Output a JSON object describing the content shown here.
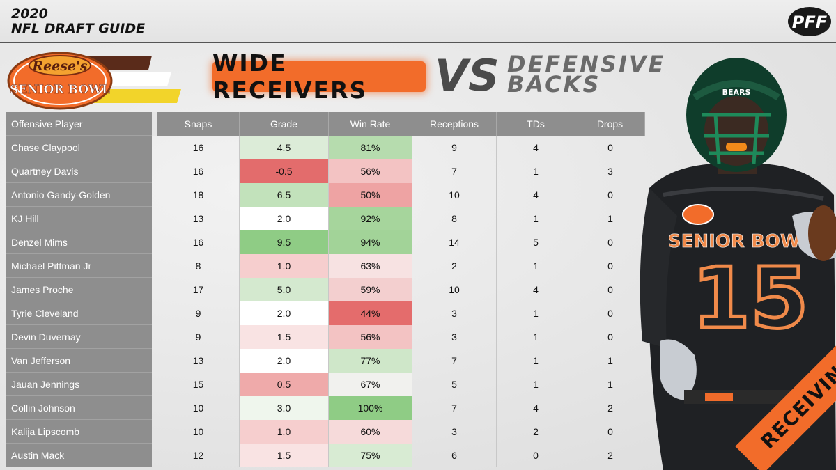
{
  "header": {
    "year": "2020",
    "guide_name": "NFL DRAFT GUIDE",
    "brand": "PFF"
  },
  "logo": {
    "top_text": "Reese's",
    "bottom_text": "SENIOR BOWL"
  },
  "title": {
    "left": "WIDE RECEIVERS",
    "vs": "VS",
    "right_line1": "DEFENSIVE",
    "right_line2": "BACKS"
  },
  "table": {
    "columns": [
      "Offensive Player",
      "Snaps",
      "Grade",
      "Win Rate",
      "Receptions",
      "TDs",
      "Drops"
    ],
    "rows": [
      {
        "player": "Chase Claypool",
        "snaps": "16",
        "grade": "4.5",
        "win_rate": "81%",
        "receptions": "9",
        "tds": "4",
        "drops": "0",
        "grade_color": "#dcecd8",
        "win_color": "#b6dcae"
      },
      {
        "player": "Quartney Davis",
        "snaps": "16",
        "grade": "-0.5",
        "win_rate": "56%",
        "receptions": "7",
        "tds": "1",
        "drops": "3",
        "grade_color": "#e36c6c",
        "win_color": "#f3c3c3"
      },
      {
        "player": "Antonio Gandy-Golden",
        "snaps": "18",
        "grade": "6.5",
        "win_rate": "50%",
        "receptions": "10",
        "tds": "4",
        "drops": "0",
        "grade_color": "#c2e2bb",
        "win_color": "#eea3a3"
      },
      {
        "player": "KJ Hill",
        "snaps": "13",
        "grade": "2.0",
        "win_rate": "92%",
        "receptions": "8",
        "tds": "1",
        "drops": "1",
        "grade_color": "#ffffff",
        "win_color": "#a6d59c"
      },
      {
        "player": "Denzel Mims",
        "snaps": "16",
        "grade": "9.5",
        "win_rate": "94%",
        "receptions": "14",
        "tds": "5",
        "drops": "0",
        "grade_color": "#8fcc85",
        "win_color": "#a2d398"
      },
      {
        "player": "Michael Pittman Jr",
        "snaps": "8",
        "grade": "1.0",
        "win_rate": "63%",
        "receptions": "2",
        "tds": "1",
        "drops": "0",
        "grade_color": "#f6cece",
        "win_color": "#f7e2e2"
      },
      {
        "player": "James Proche",
        "snaps": "17",
        "grade": "5.0",
        "win_rate": "59%",
        "receptions": "10",
        "tds": "4",
        "drops": "0",
        "grade_color": "#d4e9cf",
        "win_color": "#f3cfcf"
      },
      {
        "player": "Tyrie Cleveland",
        "snaps": "9",
        "grade": "2.0",
        "win_rate": "44%",
        "receptions": "3",
        "tds": "1",
        "drops": "0",
        "grade_color": "#ffffff",
        "win_color": "#e46c6c"
      },
      {
        "player": "Devin Duvernay",
        "snaps": "9",
        "grade": "1.5",
        "win_rate": "56%",
        "receptions": "3",
        "tds": "1",
        "drops": "0",
        "grade_color": "#f9e3e3",
        "win_color": "#f3c3c3"
      },
      {
        "player": "Van Jefferson",
        "snaps": "13",
        "grade": "2.0",
        "win_rate": "77%",
        "receptions": "7",
        "tds": "1",
        "drops": "1",
        "grade_color": "#ffffff",
        "win_color": "#cfe7c9"
      },
      {
        "player": "Jauan Jennings",
        "snaps": "15",
        "grade": "0.5",
        "win_rate": "67%",
        "receptions": "5",
        "tds": "1",
        "drops": "1",
        "grade_color": "#efaaaa",
        "win_color": "#f1f1ee"
      },
      {
        "player": "Collin Johnson",
        "snaps": "10",
        "grade": "3.0",
        "win_rate": "100%",
        "receptions": "7",
        "tds": "4",
        "drops": "2",
        "grade_color": "#eff6ed",
        "win_color": "#8fcc85"
      },
      {
        "player": "Kalija Lipscomb",
        "snaps": "10",
        "grade": "1.0",
        "win_rate": "60%",
        "receptions": "3",
        "tds": "2",
        "drops": "0",
        "grade_color": "#f6cece",
        "win_color": "#f6dada"
      },
      {
        "player": "Austin Mack",
        "snaps": "12",
        "grade": "1.5",
        "win_rate": "75%",
        "receptions": "6",
        "tds": "0",
        "drops": "2",
        "grade_color": "#f9e3e3",
        "win_color": "#d8ebd3"
      }
    ]
  },
  "player_photo": {
    "jersey_text": "SENIOR BOWL",
    "jersey_number": "15",
    "helmet_text": "BEARS"
  },
  "ribbon": {
    "label": "RECEIVING"
  },
  "colors": {
    "accent_orange": "#f26c2a",
    "header_gray": "#8e8e8e"
  }
}
